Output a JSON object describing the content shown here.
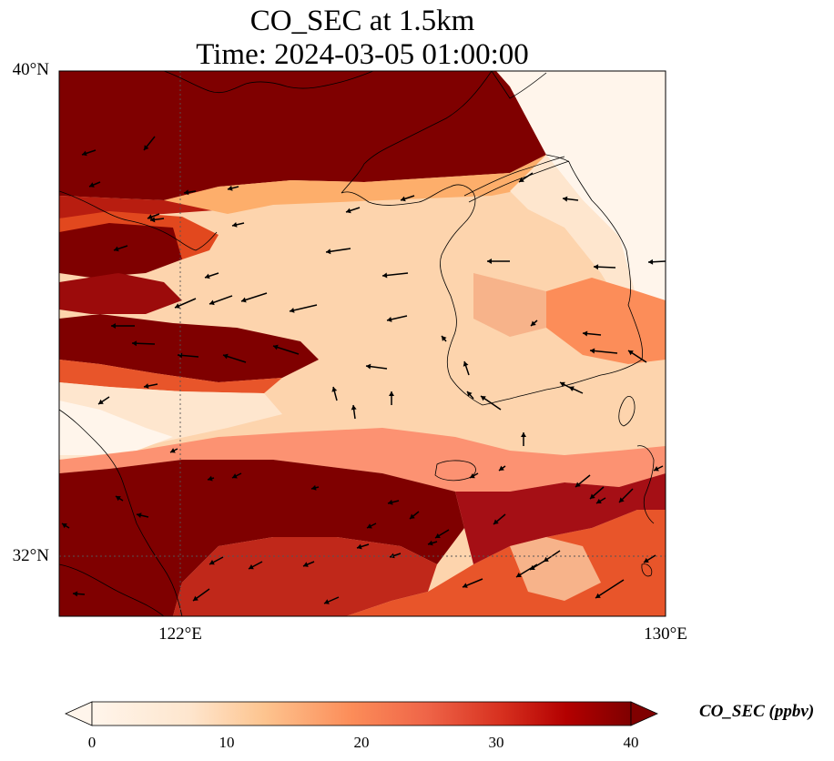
{
  "title": "CO_SEC at 1.5km",
  "subtitle": "Time: 2024-03-05 01:00:00",
  "map": {
    "lat_ticks": [
      {
        "label": "40°N",
        "lat": 40
      },
      {
        "label": "32°N",
        "lat": 32
      }
    ],
    "lon_ticks": [
      {
        "label": "122°E",
        "lon": 122
      },
      {
        "label": "130°E",
        "lon": 130
      }
    ],
    "gridlines": "dotted",
    "wind_vectors": true
  },
  "colorbar": {
    "label": "CO_SEC (ppbv)",
    "colormap": [
      "#fff5eb",
      "#fdd0a2",
      "#fdae6b",
      "#f16913",
      "#d7301f",
      "#a50f15",
      "#7f0000"
    ],
    "ticks": [
      "0",
      "10",
      "20",
      "30",
      "40"
    ],
    "extend": "both"
  }
}
